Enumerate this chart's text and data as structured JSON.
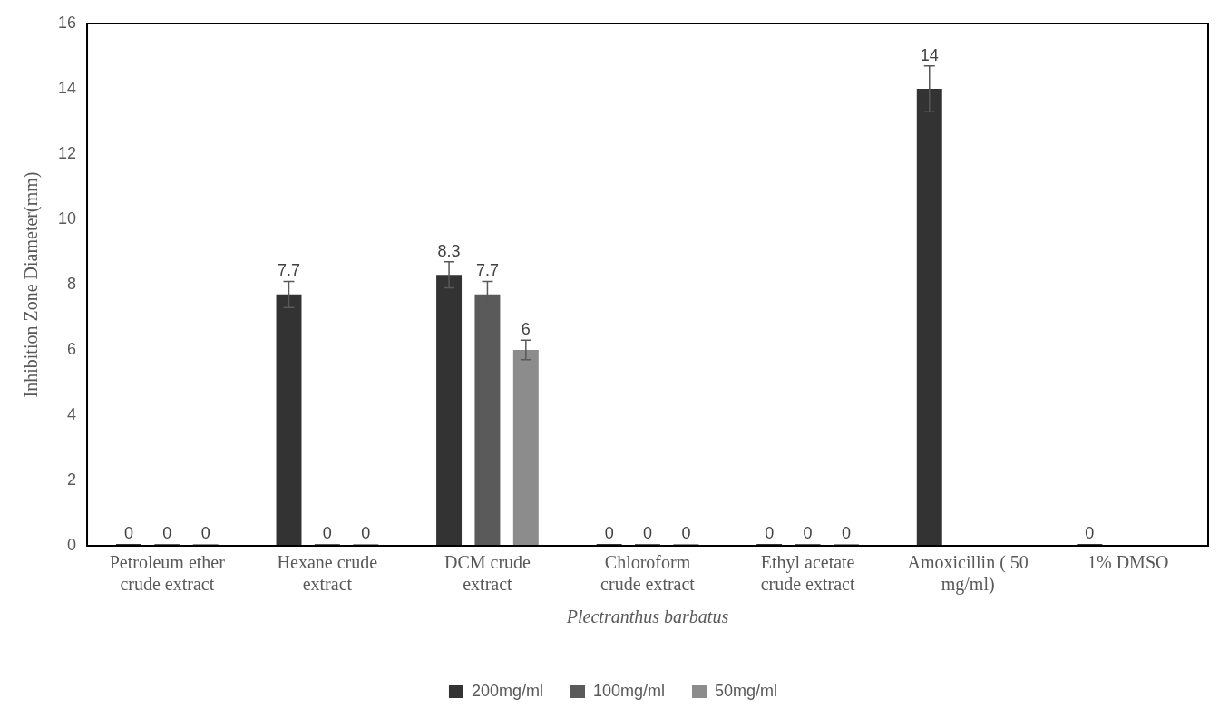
{
  "chart_data": {
    "type": "bar",
    "categories": [
      "Petroleum ether crude extract",
      "Hexane crude extract",
      "DCM crude extract",
      "Chloroform crude extract",
      "Ethyl acetate crude extract",
      "Amoxicillin ( 50 mg/ml)",
      "1% DMSO"
    ],
    "series": [
      {
        "name": "200mg/ml",
        "color": "#333333",
        "values": [
          0,
          7.7,
          8.3,
          0,
          0,
          14,
          0
        ],
        "errors": [
          null,
          0.4,
          0.4,
          null,
          null,
          0.7,
          null
        ]
      },
      {
        "name": "100mg/ml",
        "color": "#5a5a5a",
        "values": [
          0,
          0,
          7.7,
          0,
          0,
          null,
          null
        ],
        "errors": [
          null,
          null,
          0.4,
          null,
          null,
          null,
          null
        ]
      },
      {
        "name": "50mg/ml",
        "color": "#8c8c8c",
        "values": [
          0,
          0,
          6,
          0,
          0,
          null,
          null
        ],
        "errors": [
          null,
          null,
          0.3,
          null,
          null,
          null,
          null
        ]
      }
    ],
    "xlabel": "Plectranthus barbatus",
    "ylabel": "Inhibition Zone Diameter(mm)",
    "ylim": [
      0,
      16
    ],
    "yticks": [
      0,
      2,
      4,
      6,
      8,
      10,
      12,
      14,
      16
    ],
    "grid": false,
    "legend": "bottom",
    "data_labels": true
  }
}
